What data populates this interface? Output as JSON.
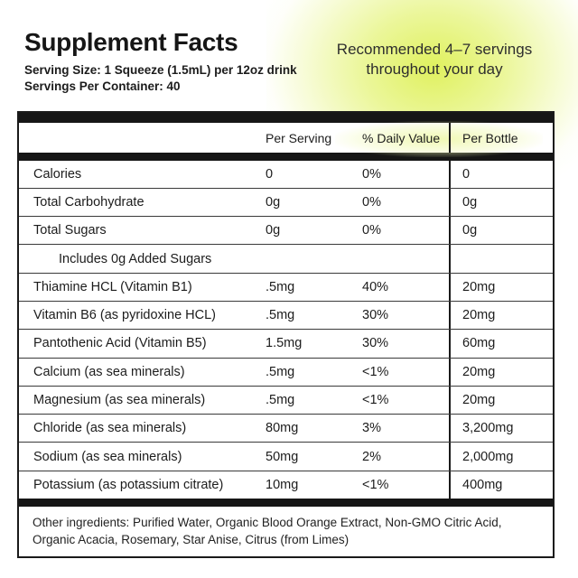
{
  "header": {
    "title": "Supplement Facts",
    "serving_size": "Serving Size: 1 Squeeze (1.5mL) per 12oz drink",
    "servings_per_container": "Servings Per Container: 40",
    "recommendation_line1": "Recommended 4–7 servings",
    "recommendation_line2": "throughout your day"
  },
  "table": {
    "columns": [
      "",
      "Per Serving",
      "% Daily Value",
      "Per Bottle"
    ],
    "rows": [
      {
        "name": "Calories",
        "per_serving": "0",
        "daily_value": "0%",
        "per_bottle": "0"
      },
      {
        "name": "Total Carbohydrate",
        "per_serving": "0g",
        "daily_value": "0%",
        "per_bottle": "0g"
      },
      {
        "name": "Total Sugars",
        "per_serving": "0g",
        "daily_value": "0%",
        "per_bottle": "0g"
      },
      {
        "name": "Includes 0g Added Sugars",
        "per_serving": "",
        "daily_value": "",
        "per_bottle": ""
      },
      {
        "name": "Thiamine HCL (Vitamin B1)",
        "per_serving": ".5mg",
        "daily_value": "40%",
        "per_bottle": "20mg"
      },
      {
        "name": "Vitamin B6 (as pyridoxine HCL)",
        "per_serving": ".5mg",
        "daily_value": "30%",
        "per_bottle": "20mg"
      },
      {
        "name": "Pantothenic Acid (Vitamin B5)",
        "per_serving": "1.5mg",
        "daily_value": "30%",
        "per_bottle": "60mg"
      },
      {
        "name": "Calcium (as sea minerals)",
        "per_serving": ".5mg",
        "daily_value": "<1%",
        "per_bottle": "20mg"
      },
      {
        "name": "Magnesium (as sea minerals)",
        "per_serving": ".5mg",
        "daily_value": "<1%",
        "per_bottle": "20mg"
      },
      {
        "name": "Chloride (as sea minerals)",
        "per_serving": "80mg",
        "daily_value": "3%",
        "per_bottle": "3,200mg"
      },
      {
        "name": "Sodium (as sea minerals)",
        "per_serving": "50mg",
        "daily_value": "2%",
        "per_bottle": "2,000mg"
      },
      {
        "name": "Potassium (as potassium citrate)",
        "per_serving": "10mg",
        "daily_value": "<1%",
        "per_bottle": "400mg"
      }
    ],
    "other_ingredients": "Other ingredients: Purified Water, Organic Blood Orange Extract, Non-GMO Citric Acid, Organic Acacia, Rosemary, Star Anise, Citrus (from Limes)"
  },
  "colors": {
    "glow_highlight": "#dff056",
    "bar_black": "#161616",
    "text": "#1c1c1c"
  }
}
